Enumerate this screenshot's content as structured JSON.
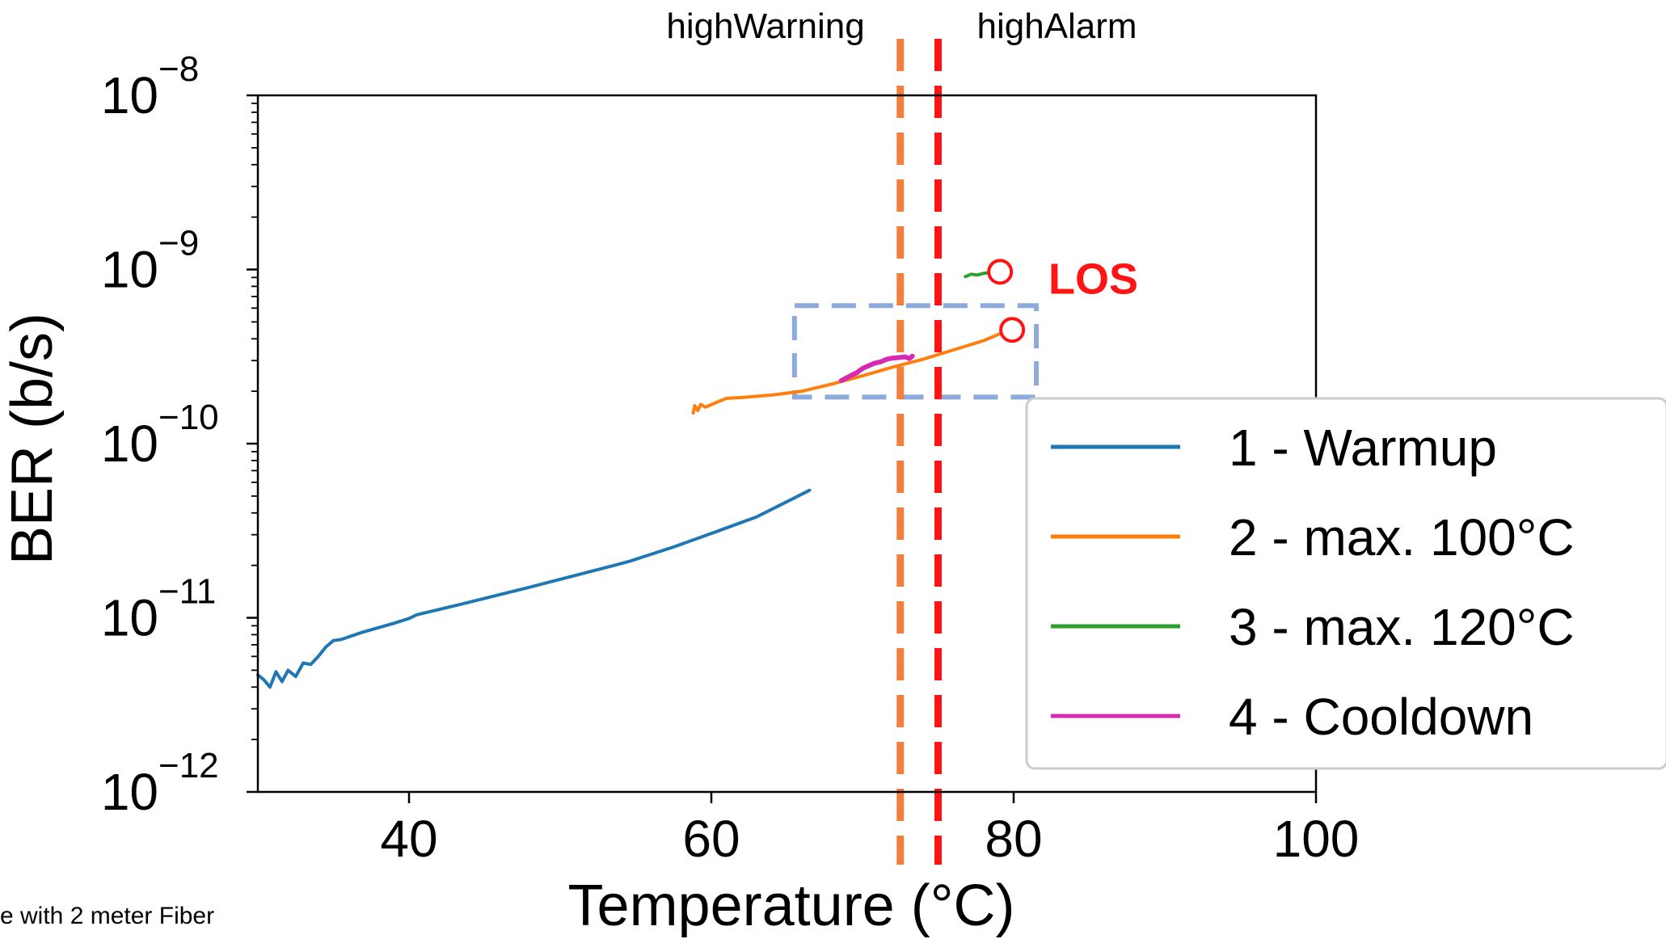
{
  "chart_data": {
    "type": "line",
    "xlabel": "Temperature (°C)",
    "ylabel": "BER (b/s)",
    "xlim": [
      30,
      100
    ],
    "ylim": [
      1e-12,
      1e-08
    ],
    "yscale": "log",
    "xticks": [
      {
        "value": 40,
        "label": "40"
      },
      {
        "value": 60,
        "label": "60"
      },
      {
        "value": 80,
        "label": "80"
      },
      {
        "value": 100,
        "label": "100"
      }
    ],
    "yticks": [
      {
        "value": 1e-12,
        "base": "10",
        "exp": "−12"
      },
      {
        "value": 1e-11,
        "base": "10",
        "exp": "−11"
      },
      {
        "value": 1e-10,
        "base": "10",
        "exp": "−10"
      },
      {
        "value": 1e-09,
        "base": "10",
        "exp": "−9"
      },
      {
        "value": 1e-08,
        "base": "10",
        "exp": "−8"
      }
    ],
    "grid": false,
    "legend_position": "right",
    "series": [
      {
        "name": "1 - Warmup",
        "color": "#1f77b4",
        "points": [
          [
            30.0,
            4.7e-12
          ],
          [
            30.4,
            4.4e-12
          ],
          [
            30.8,
            4e-12
          ],
          [
            31.2,
            4.9e-12
          ],
          [
            31.6,
            4.3e-12
          ],
          [
            32.0,
            5e-12
          ],
          [
            32.5,
            4.6e-12
          ],
          [
            33.0,
            5.5e-12
          ],
          [
            33.5,
            5.4e-12
          ],
          [
            34.0,
            6e-12
          ],
          [
            34.5,
            6.8e-12
          ],
          [
            35.0,
            7.4e-12
          ],
          [
            35.5,
            7.5e-12
          ],
          [
            37.0,
            8.3e-12
          ],
          [
            39.0,
            9.3e-12
          ],
          [
            40.0,
            9.9e-12
          ],
          [
            40.5,
            1.04e-11
          ],
          [
            43.5,
            1.2e-11
          ],
          [
            48.0,
            1.5e-11
          ],
          [
            51.0,
            1.75e-11
          ],
          [
            54.5,
            2.1e-11
          ],
          [
            57.5,
            2.55e-11
          ],
          [
            60.0,
            3.05e-11
          ],
          [
            63.0,
            3.8e-11
          ],
          [
            66.5,
            5.4e-11
          ]
        ]
      },
      {
        "name": "2 - max. 100°C",
        "color": "#ff7f0e",
        "points": [
          [
            58.8,
            1.5e-10
          ],
          [
            58.9,
            1.65e-10
          ],
          [
            59.1,
            1.55e-10
          ],
          [
            59.3,
            1.68e-10
          ],
          [
            59.6,
            1.62e-10
          ],
          [
            59.9,
            1.66e-10
          ],
          [
            60.5,
            1.75e-10
          ],
          [
            61.0,
            1.82e-10
          ],
          [
            62.0,
            1.84e-10
          ],
          [
            64.0,
            1.9e-10
          ],
          [
            66.0,
            2e-10
          ],
          [
            68.0,
            2.2e-10
          ],
          [
            70.0,
            2.45e-10
          ],
          [
            72.0,
            2.75e-10
          ],
          [
            74.0,
            3.05e-10
          ],
          [
            76.0,
            3.45e-10
          ],
          [
            78.0,
            3.9e-10
          ],
          [
            79.7,
            4.5e-10
          ]
        ]
      },
      {
        "name": "3 - max. 120°C",
        "color": "#2ca02c",
        "points": [
          [
            76.8,
            9.1e-10
          ],
          [
            77.2,
            9.4e-10
          ],
          [
            77.6,
            9.3e-10
          ],
          [
            78.0,
            9.5e-10
          ],
          [
            78.5,
            9.6e-10
          ],
          [
            78.8,
            9.7e-10
          ]
        ]
      },
      {
        "name": "4 - Cooldown",
        "color": "#d62ab4",
        "points": [
          [
            68.6,
            2.3e-10
          ],
          [
            69.2,
            2.45e-10
          ],
          [
            69.6,
            2.55e-10
          ],
          [
            70.0,
            2.7e-10
          ],
          [
            70.4,
            2.8e-10
          ],
          [
            70.8,
            2.9e-10
          ],
          [
            71.2,
            2.95e-10
          ],
          [
            71.6,
            3.05e-10
          ],
          [
            72.0,
            3.1e-10
          ],
          [
            72.4,
            3.12e-10
          ],
          [
            72.8,
            3.15e-10
          ],
          [
            73.1,
            3.08e-10
          ],
          [
            73.3,
            3.18e-10
          ]
        ]
      }
    ],
    "vlines": [
      {
        "x": 72.5,
        "color": "#f0803c",
        "label": "highWarning",
        "label_side": "left"
      },
      {
        "x": 75.0,
        "color": "#ff1414",
        "label": "highAlarm",
        "label_side": "right"
      }
    ],
    "markers": [
      {
        "x": 79.1,
        "y": 9.7e-10,
        "color": "#ff1414",
        "shape": "open-circle"
      },
      {
        "x": 79.9,
        "y": 4.5e-10,
        "color": "#ff1414",
        "shape": "open-circle"
      }
    ],
    "annotations": [
      {
        "text": "LOS",
        "x": 82.3,
        "y": 9e-10,
        "color": "#ff1414"
      }
    ],
    "highlight_box": {
      "x": [
        65.5,
        81.5
      ],
      "y": [
        1.85e-10,
        6.2e-10
      ],
      "color": "#8ea9db",
      "style": "dashed"
    },
    "caption": "e with 2 meter Fiber"
  }
}
